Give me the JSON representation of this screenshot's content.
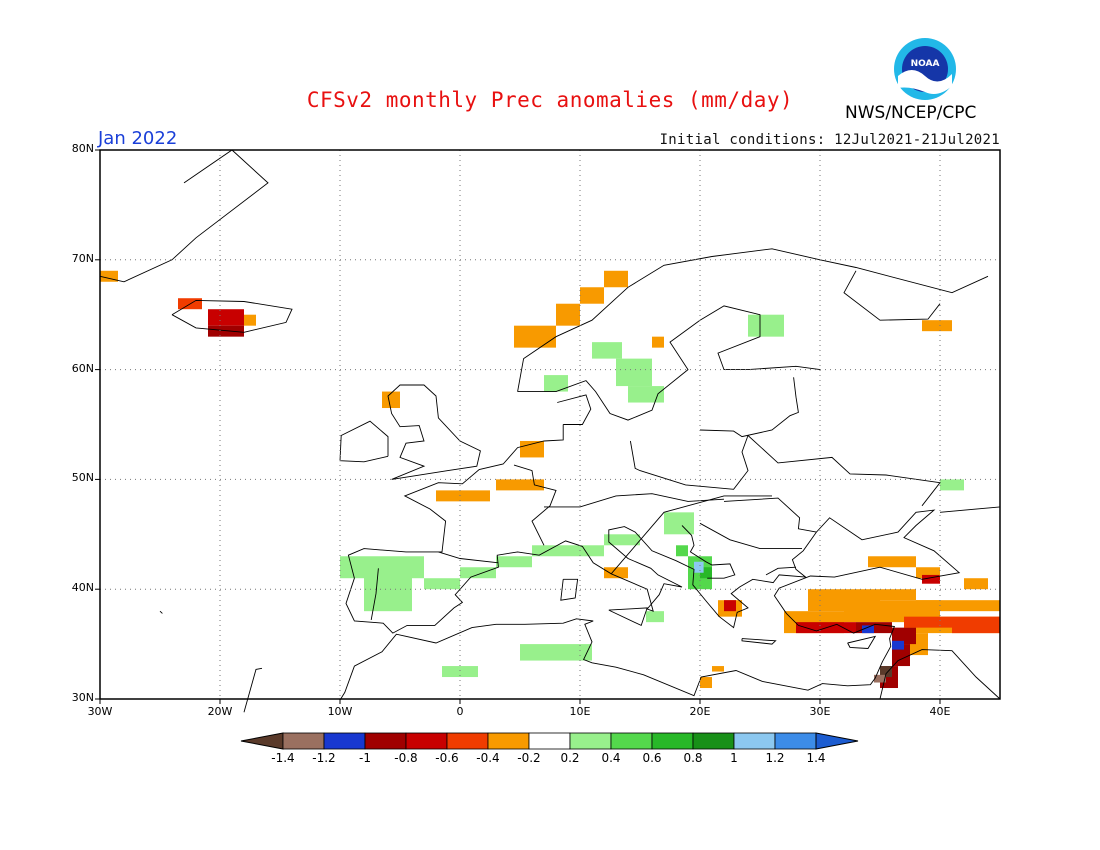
{
  "header": {
    "title": "CFSv2 monthly Prec anomalies (mm/day)",
    "org": "NWS/NCEP/CPC",
    "logo_text": "NOAA",
    "month": "Jan 2022",
    "initial_conditions": "Initial conditions: 12Jul2021-21Jul2021"
  },
  "map": {
    "lat_labels": [
      "80N",
      "70N",
      "60N",
      "50N",
      "40N",
      "30N"
    ],
    "lon_labels": [
      "30W",
      "20W",
      "10W",
      "0",
      "10E",
      "20E",
      "30E",
      "40E"
    ],
    "extent": {
      "lon_min": -30,
      "lon_max": 45,
      "lat_min": 30,
      "lat_max": 80
    }
  },
  "colorbar": {
    "labels": [
      "-1.4",
      "-1.2",
      "-1",
      "-0.8",
      "-0.6",
      "-0.4",
      "-0.2",
      "0.2",
      "0.4",
      "0.6",
      "0.8",
      "1",
      "1.2",
      "1.4"
    ],
    "colors": [
      "#5a3a2a",
      "#9a7060",
      "#1838d0",
      "#a00000",
      "#c80000",
      "#f03c00",
      "#f89a00",
      "#ffffff",
      "#98f08c",
      "#54d84c",
      "#28b828",
      "#189018",
      "#8cc8f0",
      "#3c8ce8",
      "#1c5cd0"
    ]
  }
}
